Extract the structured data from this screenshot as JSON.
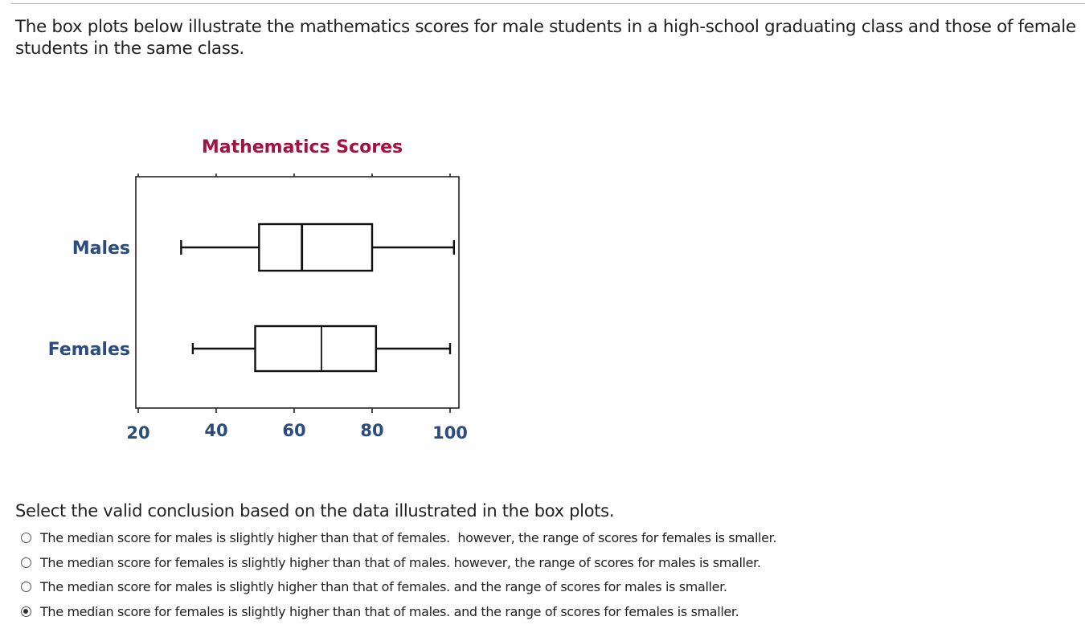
{
  "question": {
    "intro": "The box plots below illustrate the mathematics scores for male students in a high-school graduating class and those of female students in the same class.",
    "prompt": "Select the valid conclusion based on the data illustrated in the box plots.",
    "options": [
      {
        "label": "The median score for males is slightly higher than that of females.  however, the range of scores for females is smaller.",
        "selected": false
      },
      {
        "label": "The median score for females is slightly higher than that of males. however, the range of scores for males is smaller.",
        "selected": false
      },
      {
        "label": "The median score for males is slightly higher than that of females. and the range of scores for males is smaller.",
        "selected": false
      },
      {
        "label": "The median score for females is slightly higher than that of males. and the range of scores for females is smaller.",
        "selected": true
      }
    ]
  },
  "chart_data": {
    "type": "boxplot",
    "title": "Mathematics Scores",
    "orientation": "horizontal",
    "xlim": [
      20,
      100
    ],
    "x_ticks": [
      "20",
      "40",
      "60",
      "80",
      "100"
    ],
    "x_tick_values": [
      20,
      40,
      60,
      80,
      100
    ],
    "categories": [
      "Males",
      "Females"
    ],
    "series": [
      {
        "name": "Males",
        "min": 31,
        "q1": 51,
        "median": 62,
        "q3": 80,
        "max": 101
      },
      {
        "name": "Females",
        "min": 34,
        "q1": 50,
        "median": 67,
        "q3": 81,
        "max": 100
      }
    ],
    "colors": {
      "title": "#a3133f",
      "labels": "#2b4c7e",
      "boxes": "#111111"
    }
  }
}
